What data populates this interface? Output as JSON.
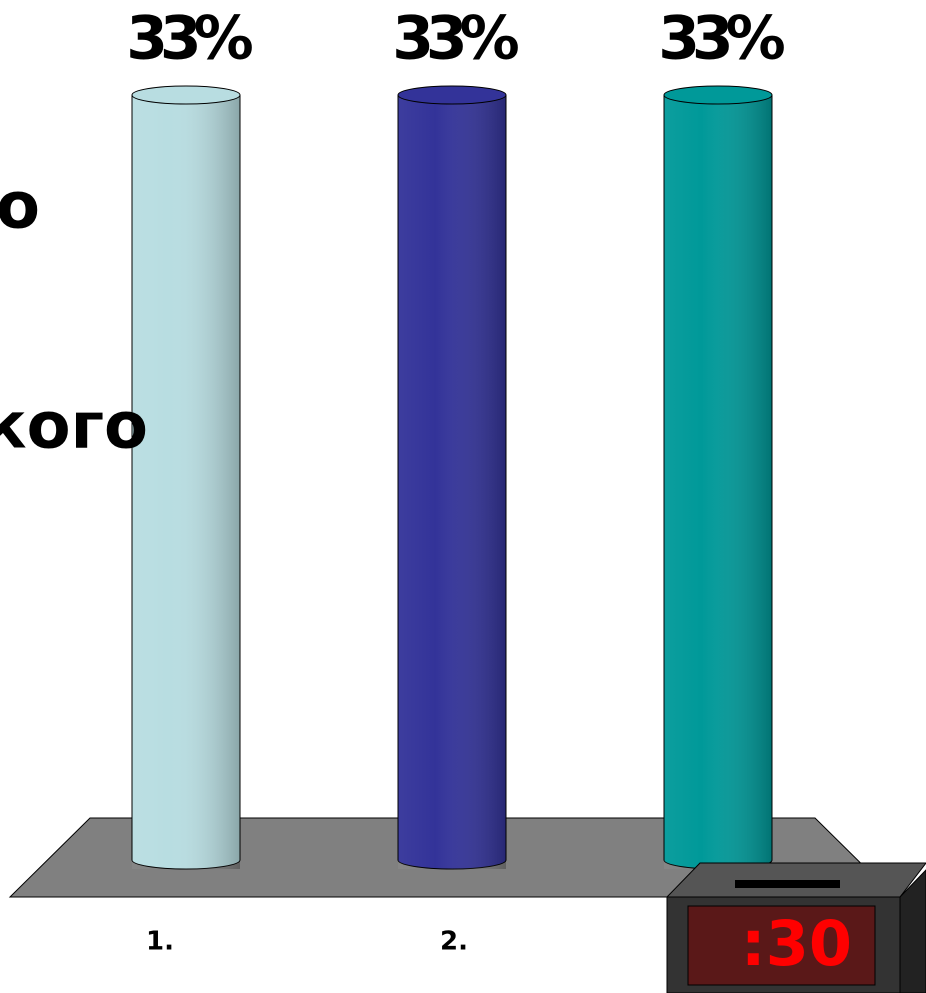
{
  "chart_data": {
    "type": "bar",
    "categories": [
      "1.",
      "2.",
      null
    ],
    "values": [
      33,
      33,
      33
    ],
    "value_labels": [
      "33%",
      "33%",
      "33%"
    ],
    "colors": [
      "#b8dde1",
      "#333399",
      "#009999"
    ],
    "annotations": [
      "о",
      "кого"
    ],
    "timer": ":30"
  }
}
